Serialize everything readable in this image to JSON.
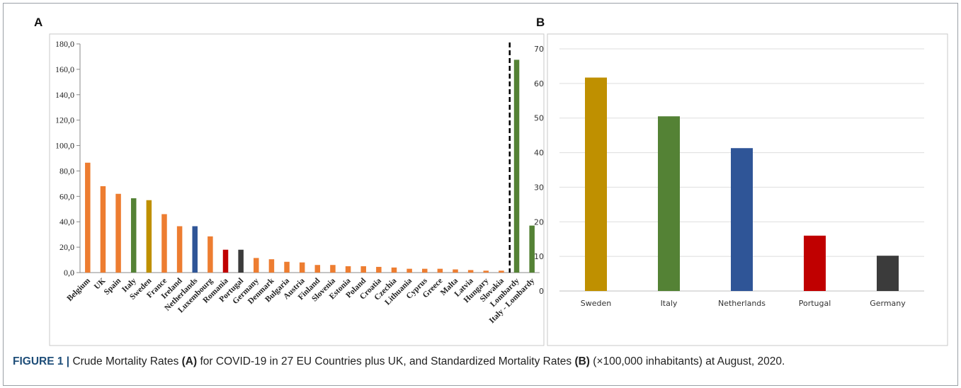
{
  "panel_a": {
    "letter": "A",
    "chart_data": {
      "type": "bar",
      "title": "",
      "xlabel": "",
      "ylabel": "",
      "ylim": [
        0,
        180
      ],
      "yticks": [
        "0,0",
        "20,0",
        "40,0",
        "60,0",
        "80,0",
        "100,0",
        "120,0",
        "140,0",
        "160,0",
        "180,0"
      ],
      "grid": false,
      "categories": [
        "Belgium",
        "UK",
        "Spain",
        "Italy",
        "Sweden",
        "France",
        "Ireland",
        "Netherlands",
        "Luxembourg",
        "Romania",
        "Portugal",
        "Germany",
        "Denmark",
        "Bulgaria",
        "Austria",
        "Finland",
        "Slovenia",
        "Estonia",
        "Poland",
        "Croatia",
        "Czechia",
        "Lithuania",
        "Cyprus",
        "Greece",
        "Malta",
        "Latvia",
        "Hungary",
        "Slovakia",
        "Lombardy",
        "Italy - Lombardy"
      ],
      "values": [
        86.5,
        68.0,
        62.0,
        58.5,
        57.0,
        46.0,
        36.5,
        36.5,
        28.5,
        18.0,
        18.0,
        11.5,
        10.5,
        8.5,
        8.0,
        6.0,
        6.0,
        5.0,
        5.0,
        4.5,
        4.0,
        3.0,
        3.0,
        3.0,
        2.5,
        2.0,
        1.5,
        1.5,
        167.5,
        37.0
      ],
      "colors": [
        "#ED7D31",
        "#ED7D31",
        "#ED7D31",
        "#548235",
        "#BF9000",
        "#ED7D31",
        "#ED7D31",
        "#2F5597",
        "#ED7D31",
        "#C00000",
        "#3B3B3B",
        "#ED7D31",
        "#ED7D31",
        "#ED7D31",
        "#ED7D31",
        "#ED7D31",
        "#ED7D31",
        "#ED7D31",
        "#ED7D31",
        "#ED7D31",
        "#ED7D31",
        "#ED7D31",
        "#ED7D31",
        "#ED7D31",
        "#ED7D31",
        "#ED7D31",
        "#ED7D31",
        "#ED7D31",
        "#548235",
        "#548235"
      ],
      "divider_after": "Slovakia"
    }
  },
  "panel_b": {
    "letter": "B",
    "chart_data": {
      "type": "bar",
      "title": "",
      "xlabel": "",
      "ylabel": "",
      "ylim": [
        0,
        70
      ],
      "yticks": [
        "0",
        "10",
        "20",
        "30",
        "40",
        "50",
        "60",
        "70"
      ],
      "grid": true,
      "categories": [
        "Sweden",
        "Italy",
        "Netherlands",
        "Portugal",
        "Germany"
      ],
      "values": [
        61.7,
        50.5,
        41.3,
        16.0,
        10.2
      ],
      "colors": [
        "#BF9000",
        "#548235",
        "#2F5597",
        "#C00000",
        "#3B3B3B"
      ]
    }
  },
  "caption": {
    "label": "FIGURE 1 |",
    "part1": " Crude Mortality Rates ",
    "ref_a": "(A)",
    "part2": " for COVID-19 in 27 EU Countries plus UK, and Standardized Mortality Rates ",
    "ref_b": "(B)",
    "part3": " (×100,000 inhabitants) at August, 2020."
  }
}
